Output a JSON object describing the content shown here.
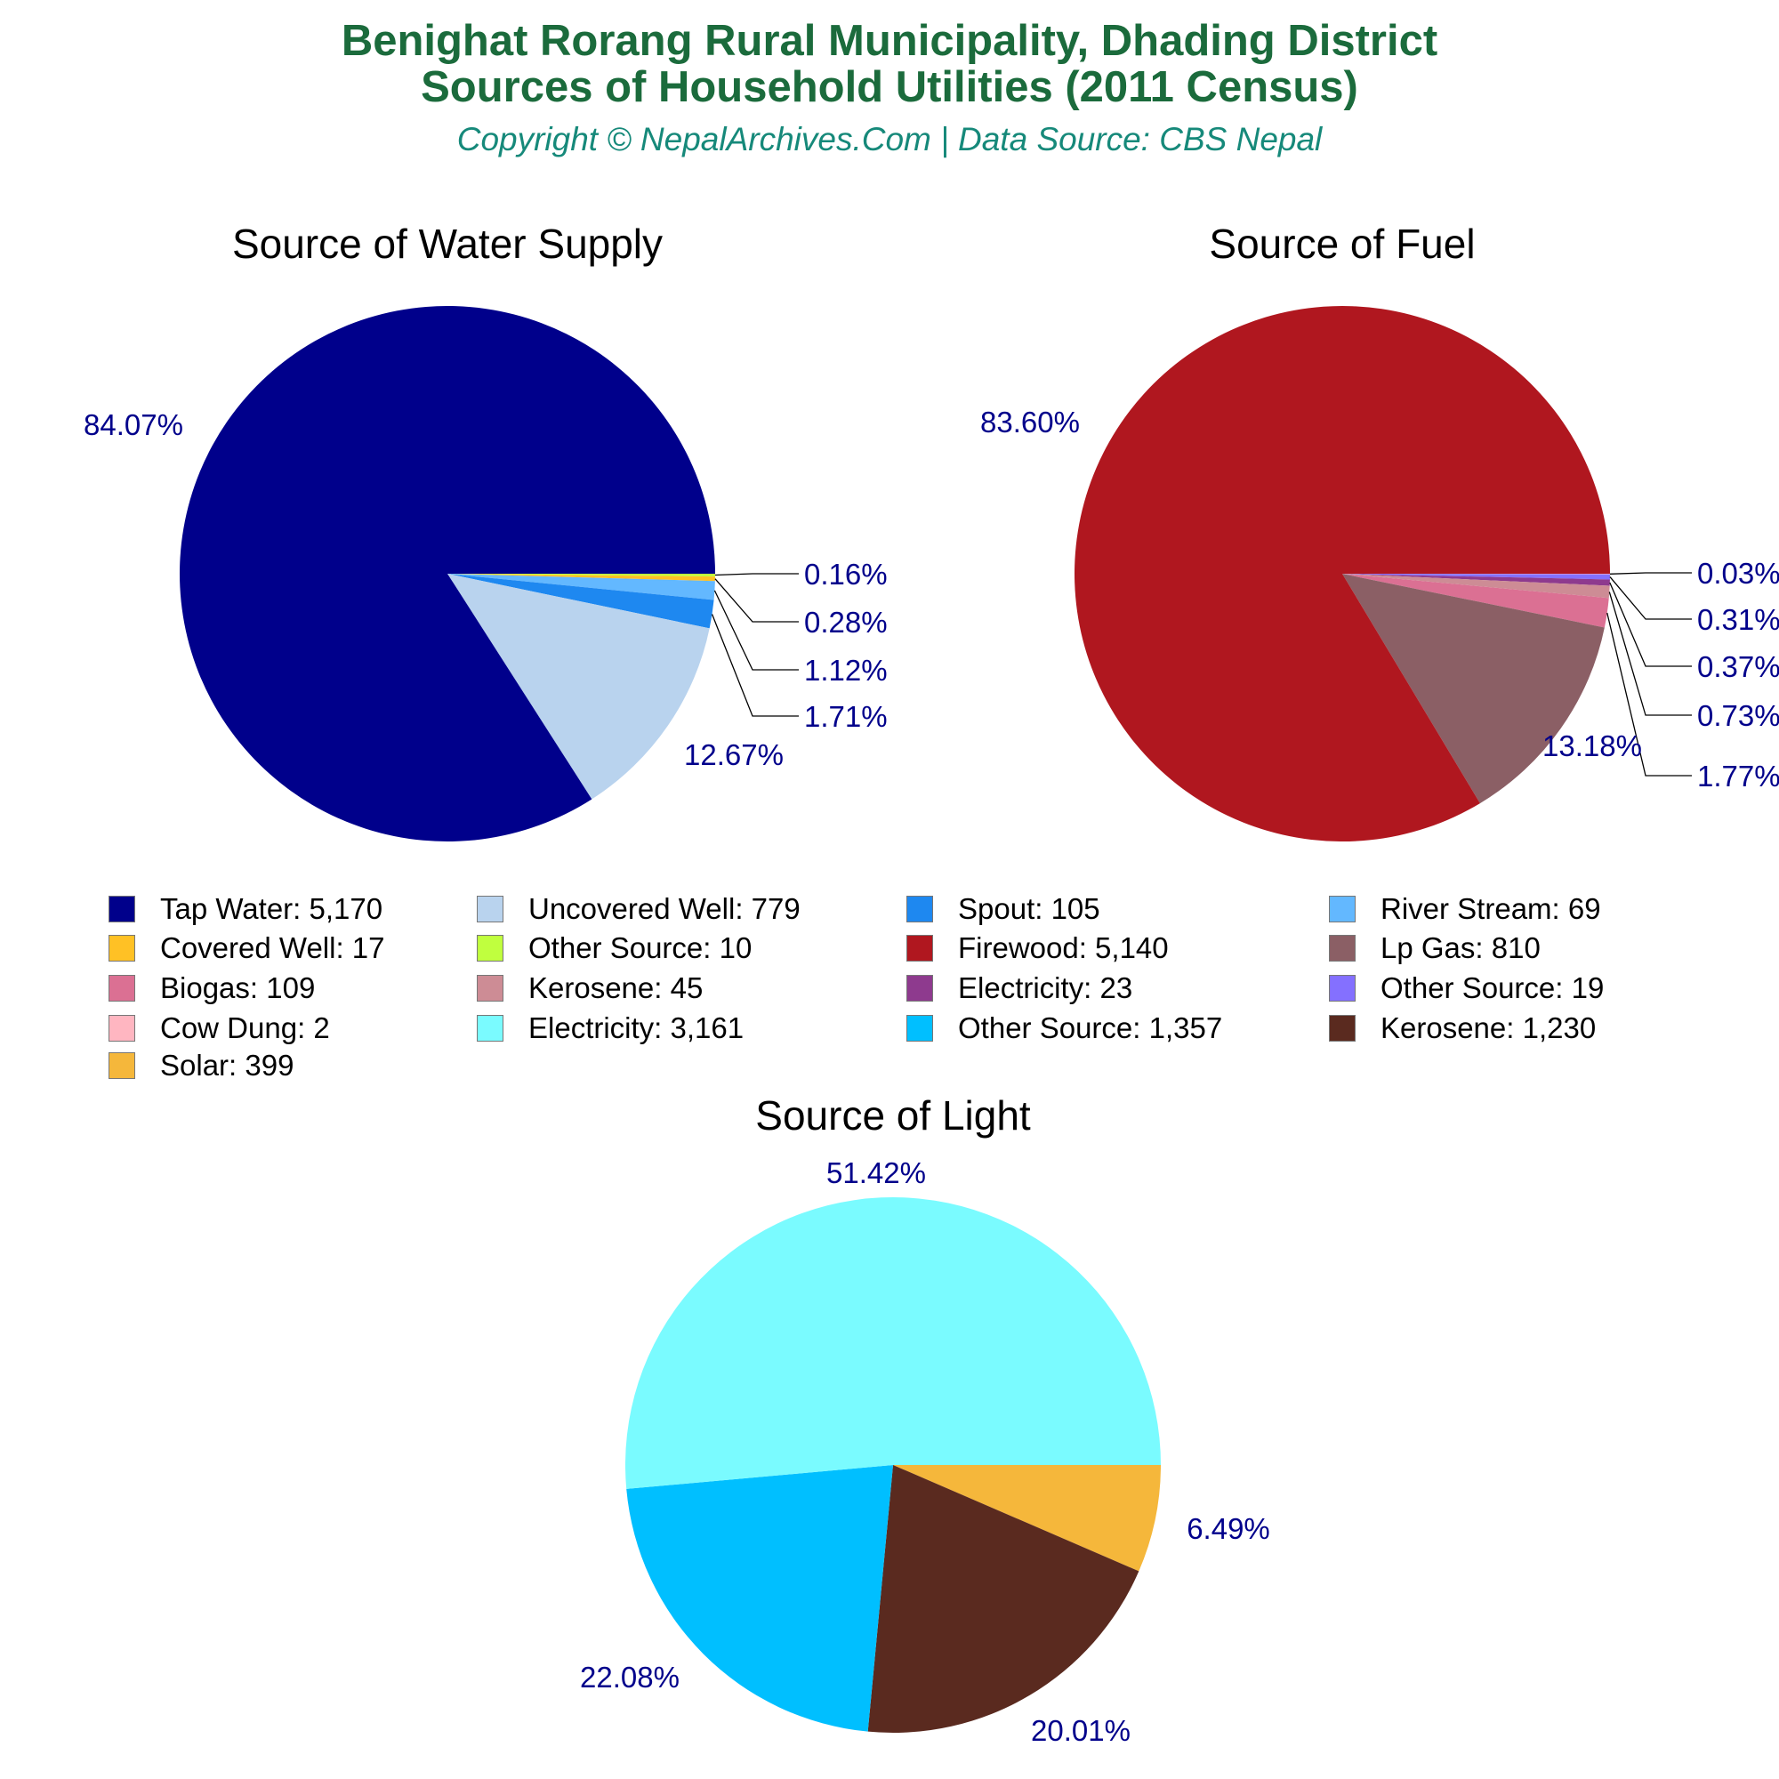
{
  "title_line1": "Benighat Rorang Rural Municipality, Dhading District",
  "title_line2": "Sources of Household Utilities (2011 Census)",
  "subtitle": "Copyright © NepalArchives.Com | Data Source: CBS Nepal",
  "label_color": "#00008b",
  "chart_data": [
    {
      "type": "pie",
      "title": "Source of Water Supply",
      "slices": [
        {
          "name": "Other Source",
          "value": 10,
          "pct": "0.16%",
          "color": "#c0ff3e"
        },
        {
          "name": "Covered Well",
          "value": 17,
          "pct": "0.28%",
          "color": "#ffc125"
        },
        {
          "name": "River Stream",
          "value": 69,
          "pct": "1.12%",
          "color": "#63b8ff"
        },
        {
          "name": "Spout",
          "value": 105,
          "pct": "1.71%",
          "color": "#1e88f0"
        },
        {
          "name": "Uncovered Well",
          "value": 779,
          "pct": "12.67%",
          "color": "#b9d3ee"
        },
        {
          "name": "Tap Water",
          "value": 5170,
          "pct": "84.07%",
          "color": "#00008b"
        }
      ]
    },
    {
      "type": "pie",
      "title": "Source of Fuel",
      "slices": [
        {
          "name": "Cow Dung",
          "value": 2,
          "pct": "0.03%",
          "color": "#ffb6c1"
        },
        {
          "name": "Other Source",
          "value": 19,
          "pct": "0.31%",
          "color": "#8470ff"
        },
        {
          "name": "Electricity",
          "value": 23,
          "pct": "0.37%",
          "color": "#8e3a8e"
        },
        {
          "name": "Kerosene",
          "value": 45,
          "pct": "0.73%",
          "color": "#cd8c95"
        },
        {
          "name": "Biogas",
          "value": 109,
          "pct": "1.77%",
          "color": "#db7093"
        },
        {
          "name": "Lp Gas",
          "value": 810,
          "pct": "13.18%",
          "color": "#8b5f65"
        },
        {
          "name": "Firewood",
          "value": 5140,
          "pct": "83.60%",
          "color": "#b0171f"
        }
      ]
    },
    {
      "type": "pie",
      "title": "Source of Light",
      "slices": [
        {
          "name": "Solar",
          "value": 399,
          "pct": "6.49%",
          "color": "#f5b73b"
        },
        {
          "name": "Kerosene",
          "value": 1230,
          "pct": "20.01%",
          "color": "#5a2a1f"
        },
        {
          "name": "Other Source",
          "value": 1357,
          "pct": "22.08%",
          "color": "#00bfff"
        },
        {
          "name": "Electricity",
          "value": 3161,
          "pct": "51.42%",
          "color": "#7afbff"
        }
      ]
    }
  ],
  "legend": [
    {
      "label": "Tap Water: 5,170",
      "color": "#00008b"
    },
    {
      "label": "Uncovered Well: 779",
      "color": "#b9d3ee"
    },
    {
      "label": "Spout: 105",
      "color": "#1e88f0"
    },
    {
      "label": "River Stream: 69",
      "color": "#63b8ff"
    },
    {
      "label": "Covered Well: 17",
      "color": "#ffc125"
    },
    {
      "label": "Other Source: 10",
      "color": "#c0ff3e"
    },
    {
      "label": "Firewood: 5,140",
      "color": "#b0171f"
    },
    {
      "label": "Lp Gas: 810",
      "color": "#8b5f65"
    },
    {
      "label": "Biogas: 109",
      "color": "#db7093"
    },
    {
      "label": "Kerosene: 45",
      "color": "#cd8c95"
    },
    {
      "label": "Electricity: 23",
      "color": "#8e3a8e"
    },
    {
      "label": "Other Source: 19",
      "color": "#8470ff"
    },
    {
      "label": "Cow Dung: 2",
      "color": "#ffb6c1"
    },
    {
      "label": "Electricity: 3,161",
      "color": "#7afbff"
    },
    {
      "label": "Other Source: 1,357",
      "color": "#00bfff"
    },
    {
      "label": "Kerosene: 1,230",
      "color": "#5a2a1f"
    },
    {
      "label": "Solar: 399",
      "color": "#f5b73b"
    }
  ]
}
